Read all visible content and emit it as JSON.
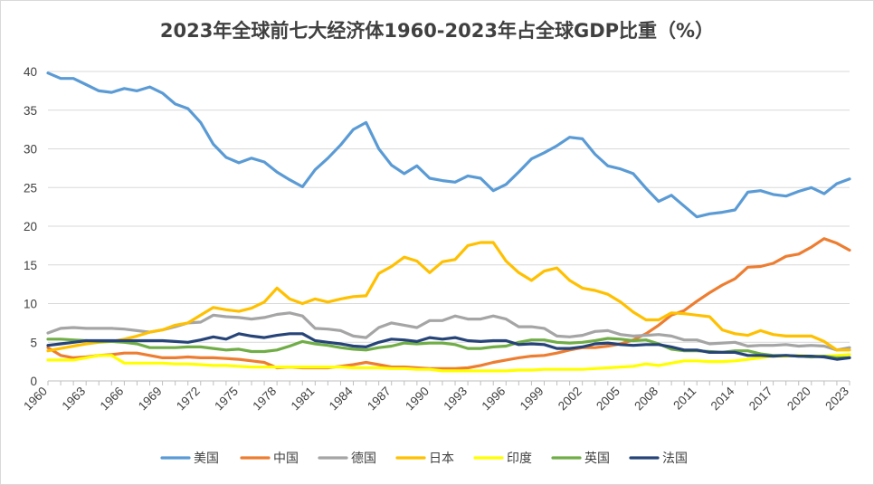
{
  "chart_data": {
    "type": "line",
    "title": "2023年全球前七大经济体1960-2023年占全球GDP比重（%）",
    "xlabel": "",
    "ylabel": "",
    "ylim": [
      0,
      40
    ],
    "yticks": [
      0,
      5,
      10,
      15,
      20,
      25,
      30,
      35,
      40
    ],
    "xlim": [
      1960,
      2023
    ],
    "xticks": [
      "1960",
      "1963",
      "1966",
      "1969",
      "1972",
      "1975",
      "1978",
      "1981",
      "1984",
      "1987",
      "1990",
      "1993",
      "1996",
      "1999",
      "2002",
      "2005",
      "2008",
      "2011",
      "2014",
      "2017",
      "2020",
      "2023"
    ],
    "grid": "horizontal",
    "legend_position": "bottom",
    "x": [
      1960,
      1961,
      1962,
      1963,
      1964,
      1965,
      1966,
      1967,
      1968,
      1969,
      1970,
      1971,
      1972,
      1973,
      1974,
      1975,
      1976,
      1977,
      1978,
      1979,
      1980,
      1981,
      1982,
      1983,
      1984,
      1985,
      1986,
      1987,
      1988,
      1989,
      1990,
      1991,
      1992,
      1993,
      1994,
      1995,
      1996,
      1997,
      1998,
      1999,
      2000,
      2001,
      2002,
      2003,
      2004,
      2005,
      2006,
      2007,
      2008,
      2009,
      2010,
      2011,
      2012,
      2013,
      2014,
      2015,
      2016,
      2017,
      2018,
      2019,
      2020,
      2021,
      2022,
      2023
    ],
    "series": [
      {
        "name": "美国",
        "color": "#5B9BD5",
        "values": [
          39.8,
          39.1,
          39.1,
          38.3,
          37.5,
          37.3,
          37.8,
          37.5,
          38.0,
          37.2,
          35.8,
          35.2,
          33.4,
          30.6,
          28.9,
          28.2,
          28.8,
          28.3,
          27.0,
          26.0,
          25.1,
          27.3,
          28.8,
          30.5,
          32.5,
          33.4,
          30.0,
          27.9,
          26.8,
          27.8,
          26.2,
          25.9,
          25.7,
          26.5,
          26.2,
          24.6,
          25.4,
          27.0,
          28.7,
          29.5,
          30.4,
          31.5,
          31.3,
          29.3,
          27.8,
          27.4,
          26.8,
          24.9,
          23.2,
          24.0,
          22.6,
          21.2,
          21.6,
          21.8,
          22.1,
          24.4,
          24.6,
          24.1,
          23.9,
          24.5,
          25.0,
          24.2,
          25.5,
          26.1
        ]
      },
      {
        "name": "中国",
        "color": "#ED7D31",
        "values": [
          4.3,
          3.3,
          3.0,
          3.1,
          3.3,
          3.4,
          3.6,
          3.6,
          3.3,
          3.0,
          3.0,
          3.1,
          3.0,
          3.0,
          2.9,
          2.8,
          2.6,
          2.4,
          1.7,
          1.8,
          1.7,
          1.7,
          1.7,
          1.9,
          2.1,
          2.4,
          2.1,
          1.8,
          1.8,
          1.7,
          1.6,
          1.6,
          1.6,
          1.7,
          2.0,
          2.4,
          2.7,
          3.0,
          3.2,
          3.3,
          3.6,
          4.0,
          4.3,
          4.3,
          4.5,
          4.8,
          5.3,
          6.1,
          7.2,
          8.5,
          9.1,
          10.3,
          11.4,
          12.4,
          13.2,
          14.7,
          14.8,
          15.2,
          16.1,
          16.4,
          17.3,
          18.4,
          17.8,
          16.9
        ]
      },
      {
        "name": "德国",
        "color": "#A5A5A5",
        "values": [
          6.2,
          6.8,
          6.9,
          6.8,
          6.8,
          6.8,
          6.7,
          6.5,
          6.3,
          6.6,
          7.0,
          7.5,
          7.6,
          8.5,
          8.3,
          8.2,
          8.0,
          8.2,
          8.6,
          8.8,
          8.4,
          6.8,
          6.7,
          6.5,
          5.8,
          5.6,
          6.9,
          7.5,
          7.2,
          6.9,
          7.8,
          7.8,
          8.4,
          8.0,
          8.0,
          8.4,
          8.0,
          7.0,
          7.0,
          6.8,
          5.8,
          5.7,
          5.9,
          6.4,
          6.5,
          6.0,
          5.8,
          5.9,
          6.0,
          5.8,
          5.3,
          5.3,
          4.8,
          4.9,
          5.0,
          4.5,
          4.6,
          4.6,
          4.7,
          4.5,
          4.6,
          4.5,
          4.0,
          4.3
        ]
      },
      {
        "name": "日本",
        "color": "#FFC000",
        "values": [
          3.9,
          4.2,
          4.5,
          4.8,
          5.0,
          5.1,
          5.4,
          5.8,
          6.3,
          6.6,
          7.2,
          7.5,
          8.5,
          9.5,
          9.2,
          9.0,
          9.4,
          10.2,
          12.0,
          10.6,
          10.0,
          10.6,
          10.2,
          10.6,
          10.9,
          11.0,
          13.9,
          14.8,
          16.0,
          15.5,
          14.0,
          15.4,
          15.7,
          17.5,
          17.9,
          17.9,
          15.5,
          14.0,
          13.0,
          14.2,
          14.6,
          13.0,
          12.0,
          11.7,
          11.2,
          10.2,
          8.9,
          7.9,
          7.9,
          8.8,
          8.7,
          8.5,
          8.3,
          6.6,
          6.1,
          5.9,
          6.5,
          6.0,
          5.8,
          5.8,
          5.8,
          5.1,
          4.0,
          4.0
        ]
      },
      {
        "name": "印度",
        "color": "#FFFF00",
        "values": [
          2.7,
          2.7,
          2.7,
          3.0,
          3.3,
          3.3,
          2.3,
          2.3,
          2.3,
          2.3,
          2.2,
          2.2,
          2.1,
          2.0,
          2.0,
          1.9,
          1.8,
          1.8,
          1.8,
          1.8,
          1.8,
          1.8,
          1.8,
          1.8,
          1.7,
          1.7,
          1.7,
          1.6,
          1.6,
          1.5,
          1.5,
          1.3,
          1.3,
          1.3,
          1.3,
          1.3,
          1.3,
          1.4,
          1.4,
          1.5,
          1.5,
          1.5,
          1.5,
          1.6,
          1.7,
          1.8,
          1.9,
          2.2,
          2.0,
          2.3,
          2.6,
          2.6,
          2.5,
          2.5,
          2.6,
          2.8,
          3.0,
          3.2,
          3.2,
          3.3,
          3.2,
          3.2,
          3.3,
          3.4
        ]
      },
      {
        "name": "英国",
        "color": "#70AD47",
        "values": [
          5.4,
          5.4,
          5.3,
          5.2,
          5.1,
          5.1,
          5.0,
          4.8,
          4.3,
          4.3,
          4.3,
          4.4,
          4.4,
          4.2,
          4.0,
          4.1,
          3.8,
          3.8,
          4.0,
          4.5,
          5.1,
          4.8,
          4.6,
          4.3,
          4.1,
          4.0,
          4.3,
          4.5,
          4.9,
          4.8,
          4.9,
          4.9,
          4.7,
          4.2,
          4.2,
          4.4,
          4.5,
          5.0,
          5.3,
          5.3,
          5.0,
          4.9,
          5.0,
          5.2,
          5.5,
          5.4,
          5.2,
          5.3,
          4.8,
          4.1,
          3.9,
          3.9,
          3.8,
          3.7,
          3.9,
          3.9,
          3.5,
          3.3,
          3.3,
          3.2,
          3.1,
          3.2,
          3.0,
          3.0
        ]
      },
      {
        "name": "法国",
        "color": "#264478",
        "values": [
          4.6,
          4.8,
          5.0,
          5.2,
          5.2,
          5.2,
          5.2,
          5.2,
          5.2,
          5.2,
          5.1,
          5.0,
          5.3,
          5.7,
          5.4,
          6.1,
          5.8,
          5.6,
          5.9,
          6.1,
          6.1,
          5.2,
          5.0,
          4.8,
          4.5,
          4.4,
          5.0,
          5.4,
          5.3,
          5.1,
          5.6,
          5.4,
          5.6,
          5.2,
          5.1,
          5.2,
          5.2,
          4.7,
          4.8,
          4.7,
          4.2,
          4.2,
          4.4,
          4.8,
          4.9,
          4.7,
          4.6,
          4.7,
          4.7,
          4.4,
          4.0,
          4.0,
          3.7,
          3.7,
          3.7,
          3.3,
          3.3,
          3.2,
          3.3,
          3.2,
          3.2,
          3.1,
          2.8,
          3.0
        ]
      }
    ]
  }
}
